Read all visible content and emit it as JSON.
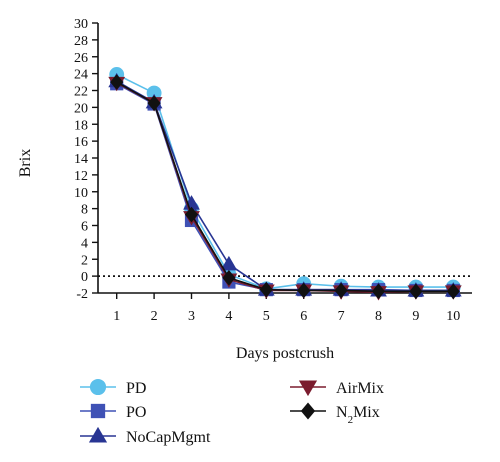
{
  "chart_data": {
    "type": "line",
    "title": "",
    "xlabel": "Days postcrush",
    "ylabel": "Brix",
    "x": [
      1,
      2,
      3,
      4,
      5,
      6,
      7,
      8,
      9,
      10
    ],
    "xlim": [
      0.5,
      10.5
    ],
    "ylim": [
      -2,
      30
    ],
    "yticks": [
      -2,
      0,
      2,
      4,
      6,
      8,
      10,
      12,
      14,
      16,
      18,
      20,
      22,
      24,
      26,
      28,
      30
    ],
    "reference_line": {
      "y": 0,
      "style": "dotted"
    },
    "grid": false,
    "legend_position": "bottom",
    "series": [
      {
        "name": "PD",
        "color": "#5bc0eb",
        "marker": "circle",
        "values": [
          23.9,
          21.7,
          8.0,
          0.2,
          -1.5,
          -0.9,
          -1.2,
          -1.3,
          -1.3,
          -1.3
        ]
      },
      {
        "name": "PO",
        "color": "#3f51b5",
        "marker": "square",
        "values": [
          22.8,
          20.4,
          6.6,
          -0.7,
          -1.6,
          -1.6,
          -1.6,
          -1.6,
          -1.7,
          -1.7
        ]
      },
      {
        "name": "NoCapMgmt",
        "color": "#283593",
        "marker": "triangle-up",
        "values": [
          23.1,
          20.6,
          8.6,
          1.4,
          -1.6,
          -1.6,
          -1.6,
          -1.7,
          -1.7,
          -1.7
        ]
      },
      {
        "name": "AirMix",
        "color": "#7b1c2e",
        "marker": "triangle-down",
        "values": [
          22.9,
          20.5,
          7.0,
          -0.4,
          -1.7,
          -1.7,
          -1.8,
          -1.9,
          -1.8,
          -1.8
        ]
      },
      {
        "name": "N2Mix",
        "label_main": "N",
        "label_sub": "2",
        "label_rest": "Mix",
        "color": "#111111",
        "marker": "diamond",
        "values": [
          23.0,
          20.5,
          7.3,
          -0.2,
          -1.6,
          -1.7,
          -1.7,
          -1.8,
          -1.8,
          -1.8
        ]
      }
    ]
  }
}
